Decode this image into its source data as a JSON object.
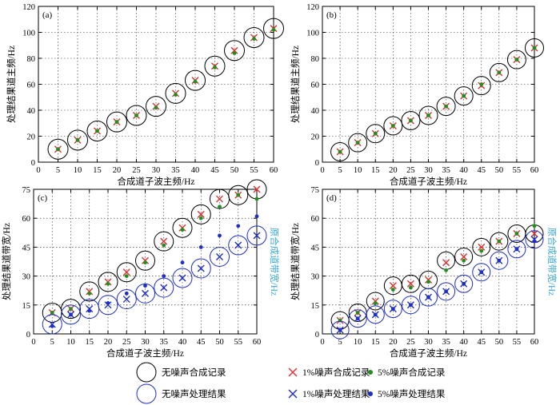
{
  "colors": {
    "black": "#000000",
    "red": "#e03030",
    "green": "#1f8f1f",
    "blue": "#1f2ec8",
    "cyan_label": "#39a8d8"
  },
  "legend": {
    "row1": [
      "无噪声合成记录",
      "1%噪声合成记录",
      "5%噪声合成记录"
    ],
    "row2": [
      "无噪声处理结果",
      "1%噪声处理结果",
      "5%噪声处理结果"
    ]
  },
  "chart_data": [
    {
      "panel": "(a)",
      "type": "scatter",
      "xlabel": "合成道子波主频/Hz",
      "ylabel": "处理结果道主频/Hz",
      "xlim": [
        0,
        60
      ],
      "ylim": [
        0,
        120
      ],
      "xticks": [
        0,
        5,
        10,
        15,
        20,
        25,
        30,
        35,
        40,
        45,
        50,
        55,
        60
      ],
      "yticks": [
        0,
        20,
        40,
        60,
        80,
        100,
        120
      ],
      "x": [
        5,
        10,
        15,
        20,
        25,
        30,
        35,
        40,
        45,
        50,
        55,
        60
      ],
      "series": [
        {
          "name": "无噪声合成记录",
          "marker": "big-circle",
          "values": [
            10,
            17,
            24,
            31,
            36,
            43,
            53,
            63,
            74,
            86,
            96,
            103
          ]
        },
        {
          "name": "1%噪声合成记录",
          "marker": "x",
          "values": [
            10,
            17,
            24,
            31,
            36,
            43,
            53,
            63,
            74,
            86,
            96,
            103
          ]
        },
        {
          "name": "5%噪声合成记录",
          "marker": "dot",
          "values": [
            10,
            17,
            24,
            31,
            36,
            42,
            52,
            62,
            73,
            84,
            95,
            102
          ]
        }
      ]
    },
    {
      "panel": "(b)",
      "type": "scatter",
      "xlabel": "合成道子波主频/Hz",
      "ylabel": "处理结果道主频/Hz",
      "xlim": [
        0,
        60
      ],
      "ylim": [
        0,
        120
      ],
      "xticks": [
        0,
        5,
        10,
        15,
        20,
        25,
        30,
        35,
        40,
        45,
        50,
        55,
        60
      ],
      "yticks": [
        0,
        20,
        40,
        60,
        80,
        100,
        120
      ],
      "x": [
        5,
        10,
        15,
        20,
        25,
        30,
        35,
        40,
        45,
        50,
        55,
        60
      ],
      "series": [
        {
          "name": "无噪声合成记录",
          "marker": "big-circle",
          "values": [
            8,
            15,
            22,
            28,
            32,
            36,
            43,
            51,
            59,
            69,
            79,
            88
          ]
        },
        {
          "name": "1%噪声合成记录",
          "marker": "x",
          "values": [
            8,
            15,
            22,
            28,
            32,
            36,
            43,
            51,
            59,
            69,
            79,
            88
          ]
        },
        {
          "name": "5%噪声合成记录",
          "marker": "dot",
          "values": [
            8,
            15,
            22,
            28,
            32,
            36,
            43,
            51,
            60,
            69,
            79,
            88
          ]
        }
      ]
    },
    {
      "panel": "(c)",
      "type": "scatter",
      "xlabel": "合成道子波主频/Hz",
      "ylabel": "处理结果道带宽/Hz",
      "ylabel_right": "原合成道带宽/Hz",
      "xlim": [
        0,
        60
      ],
      "ylim": [
        0,
        75
      ],
      "xticks": [
        0,
        5,
        10,
        15,
        20,
        25,
        30,
        35,
        40,
        45,
        50,
        55,
        60
      ],
      "yticks": [
        0,
        15,
        30,
        45,
        60,
        75
      ],
      "x": [
        5,
        10,
        15,
        20,
        25,
        30,
        35,
        40,
        45,
        50,
        55,
        60
      ],
      "series": [
        {
          "name": "无噪声合成记录",
          "marker": "big-circle",
          "values": [
            11,
            13,
            22,
            27,
            32,
            38,
            48,
            55,
            62,
            70,
            72,
            75
          ]
        },
        {
          "name": "1%噪声合成记录",
          "marker": "x",
          "values": [
            11,
            13,
            22,
            27,
            32,
            38,
            48,
            55,
            62,
            70,
            72,
            75
          ]
        },
        {
          "name": "5%噪声合成记录",
          "marker": "dot",
          "values": [
            11,
            13,
            21,
            26,
            30,
            37,
            46,
            54,
            60,
            66,
            72,
            70
          ]
        },
        {
          "name": "无噪声处理结果",
          "marker": "big-circle",
          "values": [
            5,
            10,
            13,
            15,
            18,
            21,
            24,
            29,
            34,
            40,
            46,
            51
          ]
        },
        {
          "name": "1%噪声处理结果",
          "marker": "x",
          "values": [
            5,
            10,
            13,
            15,
            18,
            21,
            24,
            29,
            34,
            40,
            46,
            51
          ]
        },
        {
          "name": "5%噪声处理结果",
          "marker": "dot",
          "values": [
            4,
            10,
            12,
            16,
            21,
            25,
            30,
            37,
            45,
            51,
            56,
            61
          ]
        }
      ]
    },
    {
      "panel": "(d)",
      "type": "scatter",
      "xlabel": "合成道子波主频/Hz",
      "ylabel": "处理结果道带宽/Hz",
      "ylabel_right": "原合成道带宽/Hz",
      "xlim": [
        0,
        60
      ],
      "ylim": [
        0,
        75
      ],
      "xticks": [
        0,
        5,
        10,
        15,
        20,
        25,
        30,
        35,
        40,
        45,
        50,
        55,
        60
      ],
      "yticks": [
        0,
        15,
        30,
        45,
        60,
        75
      ],
      "x": [
        5,
        10,
        15,
        20,
        25,
        30,
        35,
        40,
        45,
        50,
        55,
        60
      ],
      "series": [
        {
          "name": "无噪声合成记录",
          "marker": "big-circle",
          "values": [
            7,
            11,
            17,
            25,
            26,
            28,
            38,
            40,
            45,
            48,
            52,
            52
          ]
        },
        {
          "name": "1%噪声合成记录",
          "marker": "x",
          "values": [
            7,
            11,
            17,
            25,
            26,
            28,
            37,
            40,
            45,
            48,
            52,
            52
          ]
        },
        {
          "name": "5%噪声合成记录",
          "marker": "dot",
          "values": [
            7,
            11,
            16,
            23,
            24,
            27,
            33,
            38,
            43,
            48,
            52,
            56
          ]
        },
        {
          "name": "无噪声处理结果",
          "marker": "big-circle",
          "values": [
            2,
            8,
            10,
            13,
            15,
            19,
            22,
            26,
            32,
            38,
            44,
            49
          ]
        },
        {
          "name": "1%噪声处理结果",
          "marker": "x",
          "values": [
            2,
            8,
            10,
            13,
            15,
            19,
            22,
            26,
            32,
            38,
            44,
            49
          ]
        },
        {
          "name": "5%噪声处理结果",
          "marker": "dot",
          "values": [
            2,
            8,
            10,
            13,
            15,
            19,
            22,
            26,
            32,
            38,
            44,
            48
          ]
        }
      ]
    }
  ]
}
